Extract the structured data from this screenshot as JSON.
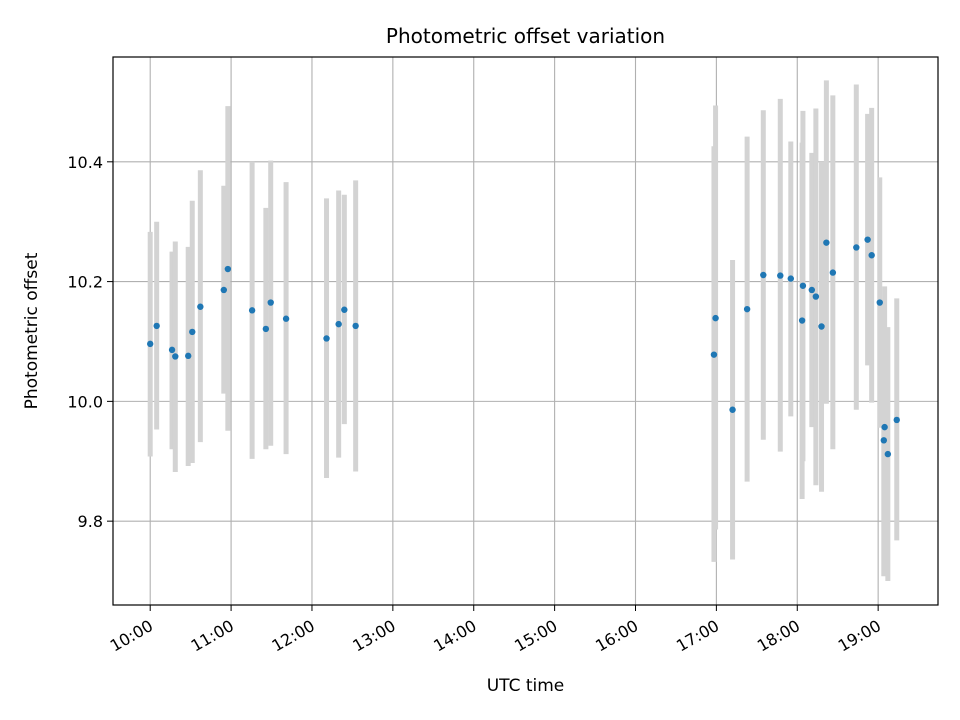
{
  "chart_data": {
    "type": "scatter",
    "title": "Photometric offset variation",
    "xlabel": "UTC time",
    "ylabel": "Photometric offset",
    "x_unit": "hours UTC",
    "xlim": [
      9.54,
      19.74
    ],
    "ylim": [
      9.66,
      10.575
    ],
    "x_ticks": [
      {
        "value": 10,
        "label": "10:00"
      },
      {
        "value": 11,
        "label": "11:00"
      },
      {
        "value": 12,
        "label": "12:00"
      },
      {
        "value": 13,
        "label": "13:00"
      },
      {
        "value": 14,
        "label": "14:00"
      },
      {
        "value": 15,
        "label": "15:00"
      },
      {
        "value": 16,
        "label": "16:00"
      },
      {
        "value": 17,
        "label": "17:00"
      },
      {
        "value": 18,
        "label": "18:00"
      },
      {
        "value": 19,
        "label": "19:00"
      }
    ],
    "y_ticks": [
      {
        "value": 9.8,
        "label": "9.8"
      },
      {
        "value": 10.0,
        "label": "10.0"
      },
      {
        "value": 10.2,
        "label": "10.2"
      },
      {
        "value": 10.4,
        "label": "10.4"
      }
    ],
    "grid": true,
    "colors": {
      "points": "#1f77b4",
      "errorbars": "#d3d3d3",
      "grid": "#b0b0b0"
    },
    "points": [
      {
        "x": 10.0,
        "y": 10.096,
        "lo": 9.908,
        "hi": 10.283
      },
      {
        "x": 10.08,
        "y": 10.126,
        "lo": 9.953,
        "hi": 10.3
      },
      {
        "x": 10.27,
        "y": 10.086,
        "lo": 9.92,
        "hi": 10.25
      },
      {
        "x": 10.31,
        "y": 10.075,
        "lo": 9.882,
        "hi": 10.267
      },
      {
        "x": 10.47,
        "y": 10.076,
        "lo": 9.892,
        "hi": 10.258
      },
      {
        "x": 10.52,
        "y": 10.116,
        "lo": 9.897,
        "hi": 10.335
      },
      {
        "x": 10.62,
        "y": 10.158,
        "lo": 9.932,
        "hi": 10.386
      },
      {
        "x": 10.91,
        "y": 10.186,
        "lo": 10.013,
        "hi": 10.36
      },
      {
        "x": 10.96,
        "y": 10.221,
        "lo": 9.951,
        "hi": 10.493
      },
      {
        "x": 11.26,
        "y": 10.152,
        "lo": 9.904,
        "hi": 10.4
      },
      {
        "x": 11.43,
        "y": 10.121,
        "lo": 9.92,
        "hi": 10.323
      },
      {
        "x": 11.49,
        "y": 10.165,
        "lo": 9.926,
        "hi": 10.402
      },
      {
        "x": 11.68,
        "y": 10.138,
        "lo": 9.912,
        "hi": 10.366
      },
      {
        "x": 12.18,
        "y": 10.105,
        "lo": 9.872,
        "hi": 10.339
      },
      {
        "x": 12.33,
        "y": 10.129,
        "lo": 9.906,
        "hi": 10.352
      },
      {
        "x": 12.4,
        "y": 10.153,
        "lo": 9.962,
        "hi": 10.345
      },
      {
        "x": 12.54,
        "y": 10.126,
        "lo": 9.883,
        "hi": 10.369
      },
      {
        "x": 16.97,
        "y": 10.078,
        "lo": 9.732,
        "hi": 10.426
      },
      {
        "x": 16.99,
        "y": 10.139,
        "lo": 9.786,
        "hi": 10.494
      },
      {
        "x": 17.2,
        "y": 9.986,
        "lo": 9.736,
        "hi": 10.236
      },
      {
        "x": 17.38,
        "y": 10.154,
        "lo": 9.866,
        "hi": 10.442
      },
      {
        "x": 17.58,
        "y": 10.211,
        "lo": 9.936,
        "hi": 10.486
      },
      {
        "x": 17.79,
        "y": 10.21,
        "lo": 9.916,
        "hi": 10.505
      },
      {
        "x": 17.92,
        "y": 10.205,
        "lo": 9.975,
        "hi": 10.434
      },
      {
        "x": 18.06,
        "y": 10.135,
        "lo": 9.837,
        "hi": 10.432
      },
      {
        "x": 18.07,
        "y": 10.193,
        "lo": 9.9,
        "hi": 10.485
      },
      {
        "x": 18.18,
        "y": 10.186,
        "lo": 9.957,
        "hi": 10.415
      },
      {
        "x": 18.23,
        "y": 10.175,
        "lo": 9.86,
        "hi": 10.489
      },
      {
        "x": 18.3,
        "y": 10.125,
        "lo": 9.849,
        "hi": 10.4
      },
      {
        "x": 18.36,
        "y": 10.265,
        "lo": 9.996,
        "hi": 10.536
      },
      {
        "x": 18.44,
        "y": 10.215,
        "lo": 9.92,
        "hi": 10.511
      },
      {
        "x": 18.73,
        "y": 10.257,
        "lo": 9.986,
        "hi": 10.529
      },
      {
        "x": 18.87,
        "y": 10.27,
        "lo": 10.06,
        "hi": 10.48
      },
      {
        "x": 18.92,
        "y": 10.244,
        "lo": 9.998,
        "hi": 10.49
      },
      {
        "x": 19.02,
        "y": 10.165,
        "lo": 9.956,
        "hi": 10.374
      },
      {
        "x": 19.07,
        "y": 9.935,
        "lo": 9.708,
        "hi": 10.162
      },
      {
        "x": 19.08,
        "y": 9.957,
        "lo": 9.722,
        "hi": 10.192
      },
      {
        "x": 19.12,
        "y": 9.912,
        "lo": 9.7,
        "hi": 10.124
      },
      {
        "x": 19.23,
        "y": 9.969,
        "lo": 9.768,
        "hi": 10.172
      }
    ]
  }
}
